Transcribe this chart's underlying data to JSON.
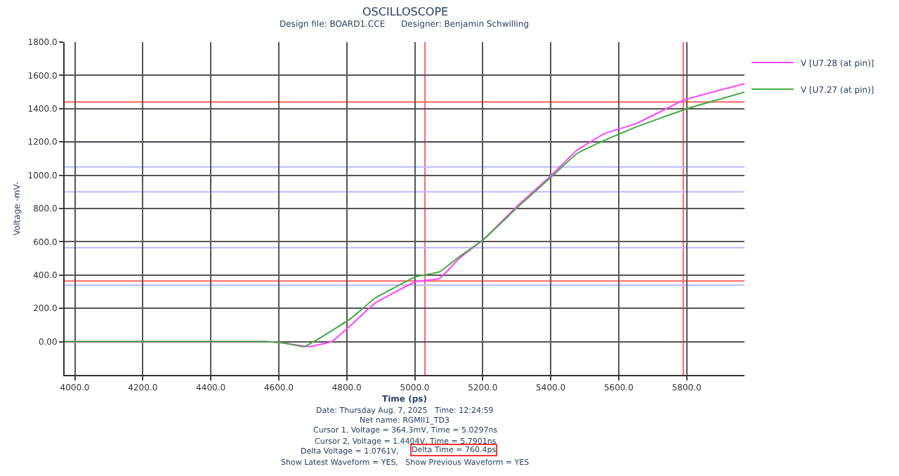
{
  "chart_data": {
    "type": "line",
    "title": "OSCILLOSCOPE",
    "subtitle": "Design file: BOARD1.CCE      Designer: Benjamin Schwilling",
    "xlabel": "Time (ps)",
    "ylabel": "Voltage -mV-",
    "xlim": [
      3970,
      5970
    ],
    "ylim": [
      -200,
      1800
    ],
    "xticks": [
      {
        "value": 4000,
        "label": "4000.0"
      },
      {
        "value": 4200,
        "label": "4200.0"
      },
      {
        "value": 4400,
        "label": "4400.0"
      },
      {
        "value": 4600,
        "label": "4600.0"
      },
      {
        "value": 4800,
        "label": "4800.0"
      },
      {
        "value": 5000,
        "label": "5000.0"
      },
      {
        "value": 5200,
        "label": "5200.0"
      },
      {
        "value": 5400,
        "label": "5400.0"
      },
      {
        "value": 5600,
        "label": "5600.0"
      },
      {
        "value": 5800,
        "label": "5800.0"
      }
    ],
    "yticks": [
      {
        "value": 0,
        "label": "0.00"
      },
      {
        "value": 200,
        "label": "200.0"
      },
      {
        "value": 400,
        "label": "400.0"
      },
      {
        "value": 600,
        "label": "600.0"
      },
      {
        "value": 800,
        "label": "800.0"
      },
      {
        "value": 1000,
        "label": "1000.0"
      },
      {
        "value": 1200,
        "label": "1200.0"
      },
      {
        "value": 1400,
        "label": "1400.0"
      },
      {
        "value": 1600,
        "label": "1600.0"
      },
      {
        "value": 1800,
        "label": "1800.0"
      }
    ],
    "grid": true,
    "legend": "top right",
    "line_style": "solid",
    "series": [
      {
        "name": "V [U7.28 (at pin)]",
        "color": "#ff44ff",
        "x": [
          3970,
          4560,
          4620,
          4686,
          4755,
          4813,
          4882,
          5003,
          5073,
          5131,
          5200,
          5304,
          5402,
          5477,
          5558,
          5651,
          5790,
          5970
        ],
        "values": [
          0,
          0,
          -10,
          -30,
          0,
          100,
          230,
          360,
          380,
          500,
          610,
          820,
          1000,
          1150,
          1250,
          1310,
          1450,
          1550
        ]
      },
      {
        "name": "V [U7.27 (at pin)]",
        "color": "#44aa44",
        "x": [
          3970,
          4560,
          4620,
          4674,
          4720,
          4813,
          4882,
          5003,
          5073,
          5131,
          5200,
          5304,
          5402,
          5477,
          5558,
          5651,
          5801,
          5970
        ],
        "values": [
          0,
          0,
          -10,
          -30,
          20,
          140,
          260,
          390,
          420,
          510,
          610,
          810,
          990,
          1130,
          1210,
          1290,
          1400,
          1500
        ]
      }
    ],
    "ref_lines": [
      {
        "axis": "y",
        "value": 1440,
        "color": "#ff6666"
      },
      {
        "axis": "y",
        "value": 364,
        "color": "#ff6666"
      },
      {
        "axis": "x",
        "value": 5030,
        "color": "#ff6666"
      },
      {
        "axis": "x",
        "value": 5790,
        "color": "#ff6666"
      },
      {
        "axis": "y",
        "value": 1200,
        "color": "#6666aa"
      },
      {
        "axis": "y",
        "value": 1050,
        "color": "#bbbbff"
      },
      {
        "axis": "y",
        "value": 900,
        "color": "#bbbbff"
      },
      {
        "axis": "y",
        "value": 565,
        "color": "#bbbbff"
      },
      {
        "axis": "y",
        "value": 340,
        "color": "#bbbbff"
      }
    ],
    "annotations": [
      "Date: Thursday Aug. 7, 2025   Time: 12:24:59",
      "Net name: RGMII1_TD3",
      "Cursor 1, Voltage = 364.3mV, Time = 5.0297ns",
      "Cursor 2, Voltage = 1.4404V, Time = 5.7901ns",
      "Delta Voltage = 1.0761V,",
      "Delta Time = 760.4ps",
      "Show Latest Waveform = YES,   Show Previous Waveform = YES"
    ]
  }
}
